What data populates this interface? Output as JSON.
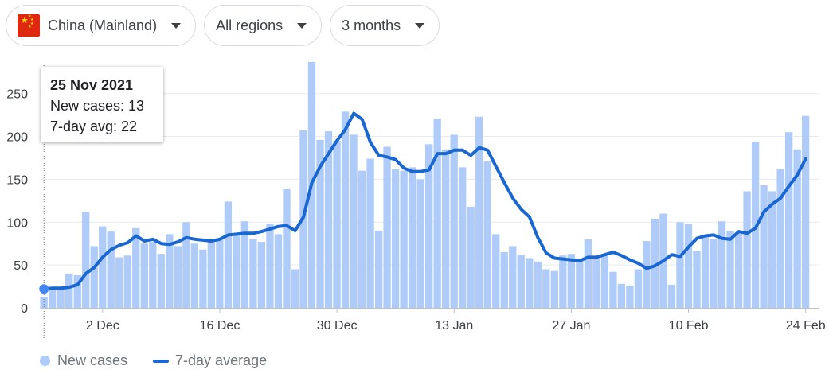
{
  "filters": {
    "country": "China (Mainland)",
    "region": "All regions",
    "period": "3 months"
  },
  "tooltip": {
    "date": "25 Nov 2021",
    "new_cases": "New cases: 13",
    "avg": "7-day avg: 22"
  },
  "legend": {
    "new_cases": "New cases",
    "avg": "7-day average"
  },
  "colors": {
    "bar": "#aecbfa",
    "line": "#1967d2",
    "grid": "#e8eaed"
  },
  "chart_data": {
    "type": "bar",
    "ylim": [
      0,
      285
    ],
    "yticks": [
      0,
      50,
      100,
      150,
      200,
      250
    ],
    "xticks": [
      {
        "index": 7,
        "label": "2 Dec"
      },
      {
        "index": 21,
        "label": "16 Dec"
      },
      {
        "index": 35,
        "label": "30 Dec"
      },
      {
        "index": 49,
        "label": "13 Jan"
      },
      {
        "index": 63,
        "label": "27 Jan"
      },
      {
        "index": 77,
        "label": "10 Feb"
      },
      {
        "index": 91,
        "label": "24 Feb"
      }
    ],
    "highlight_index": 0,
    "series": [
      {
        "name": "New cases",
        "type": "bar",
        "values": [
          13,
          22,
          24,
          40,
          38,
          112,
          72,
          95,
          89,
          59,
          61,
          93,
          75,
          77,
          63,
          86,
          72,
          100,
          75,
          68,
          79,
          80,
          124,
          85,
          101,
          80,
          77,
          98,
          86,
          139,
          45,
          207,
          287,
          196,
          206,
          195,
          229,
          202,
          160,
          174,
          90,
          188,
          162,
          160,
          164,
          150,
          191,
          221,
          185,
          202,
          164,
          118,
          223,
          171,
          86,
          65,
          72,
          62,
          58,
          54,
          45,
          43,
          61,
          63,
          57,
          80,
          57,
          63,
          42,
          28,
          26,
          45,
          78,
          104,
          110,
          27,
          100,
          98,
          66,
          85,
          80,
          101,
          90,
          88,
          136,
          194,
          143,
          136,
          162,
          205,
          185,
          224
        ]
      },
      {
        "name": "7-day average",
        "type": "line",
        "values": [
          22,
          23,
          23,
          24,
          27,
          40,
          47,
          59,
          68,
          73,
          76,
          84,
          78,
          80,
          75,
          74,
          77,
          82,
          80,
          79,
          78,
          80,
          85,
          86,
          87,
          87,
          89,
          92,
          95,
          96,
          90,
          106,
          146,
          165,
          180,
          195,
          208,
          227,
          220,
          193,
          178,
          176,
          173,
          163,
          159,
          159,
          161,
          180,
          180,
          184,
          184,
          178,
          187,
          184,
          165,
          146,
          128,
          115,
          106,
          82,
          64,
          58,
          57,
          56,
          55,
          59,
          59,
          62,
          65,
          61,
          56,
          52,
          46,
          49,
          55,
          62,
          60,
          71,
          81,
          84,
          85,
          81,
          80,
          89,
          87,
          93,
          112,
          121,
          128,
          142,
          155,
          174
        ]
      }
    ]
  }
}
